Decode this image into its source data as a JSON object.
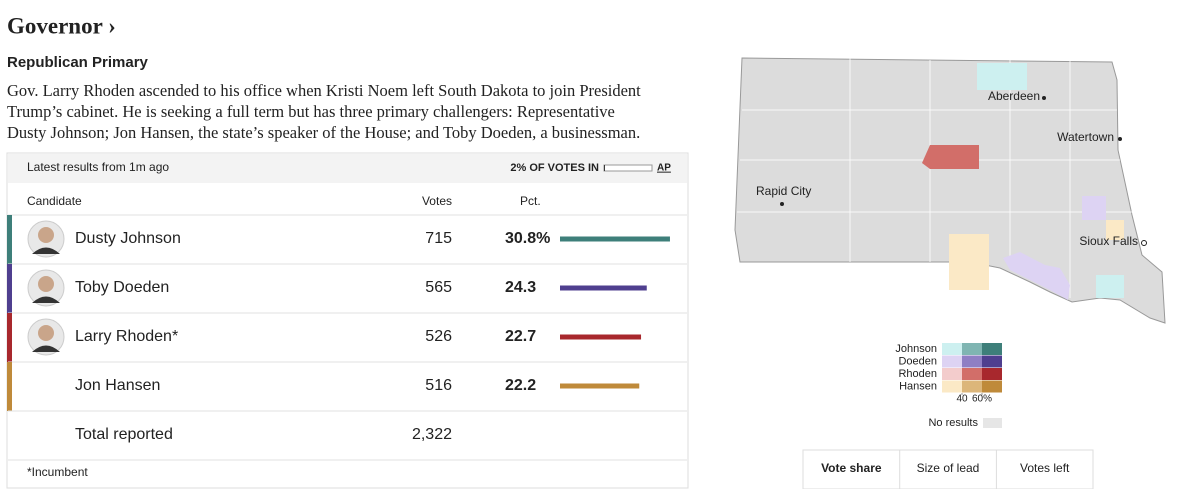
{
  "header": {
    "title": "Governor ›",
    "subtitle": "Republican Primary",
    "description": [
      "Gov. Larry Rhoden ascended to his office when Kristi Noem left South Dakota to join President",
      "Trump’s cabinet. He is seeking a full term but has three primary challengers: Representative",
      "Dusty Johnson; Jon Hansen, the state’s speaker of the House; and Toby Doeden, a businessman."
    ]
  },
  "results": {
    "updated": "Latest results from 1m ago",
    "reporting": "2% OF VOTES IN",
    "reporting_pct": 2,
    "source": "AP",
    "columns": [
      "Candidate",
      "Votes",
      "Pct."
    ],
    "rows": [
      {
        "name": "Dusty Johnson",
        "votes": 715,
        "pct": 30.8,
        "pct_label": "30.8%",
        "color": "#3e7f7a",
        "photo": true
      },
      {
        "name": "Toby Doeden",
        "votes": 565,
        "pct": 24.3,
        "color": "#4f3f8f",
        "photo": true
      },
      {
        "name": "Larry Rhoden*",
        "votes": 526,
        "pct": 22.7,
        "color": "#a8282d",
        "photo": true
      },
      {
        "name": "Jon Hansen",
        "votes": 516,
        "pct": 22.2,
        "color": "#bf8a3a",
        "photo": false
      }
    ],
    "total": {
      "label": "Total reported",
      "votes": "2,322"
    },
    "footnote": "*Incumbent"
  },
  "map": {
    "cities": [
      "Aberdeen",
      "Watertown",
      "Rapid City",
      "Sioux Falls"
    ],
    "legend": {
      "names": [
        "Johnson",
        "Doeden",
        "Rhoden",
        "Hansen"
      ],
      "colors": [
        [
          "#cdf0f0",
          "#7fb5b2",
          "#3e7f7a"
        ],
        [
          "#ddd3f3",
          "#8f7fc4",
          "#4f3f8f"
        ],
        [
          "#f3cccc",
          "#d26e69",
          "#a8282d"
        ],
        [
          "#fbe9c6",
          "#dcb67a",
          "#bf8a3a"
        ]
      ],
      "ticks": [
        40,
        {
          "value": 60,
          "label": "60%"
        }
      ],
      "no_results": "No results"
    },
    "tabs": [
      "Vote share",
      "Size of lead",
      "Votes left"
    ]
  }
}
